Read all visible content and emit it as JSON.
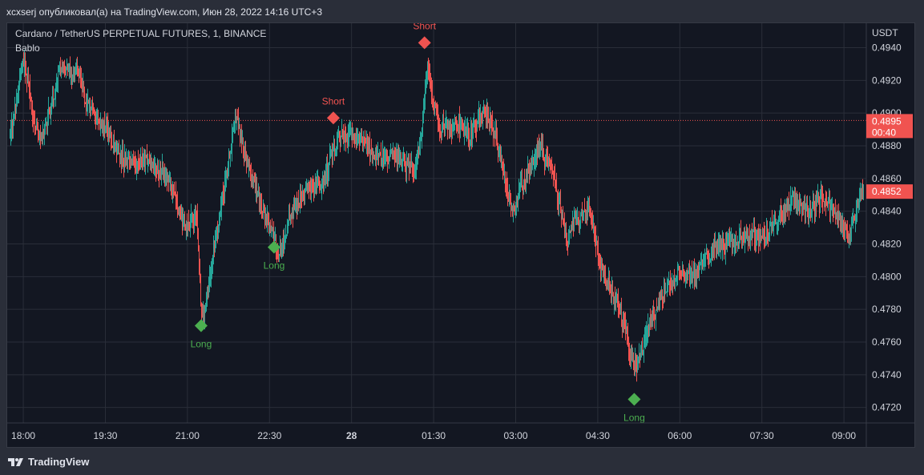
{
  "header": {
    "publisher_line": "xcxserj опубликовал(а) на TradingView.com, Июн 28, 2022 14:16 UTC+3"
  },
  "legend": {
    "symbol": "Cardano / TetherUS PERPETUAL FUTURES, 1, BINANCE",
    "indicator": "Bablo"
  },
  "footer": {
    "logo_text": "TradingView",
    "logo_icon": "tradingview-logo-icon"
  },
  "colors": {
    "background": "#131722",
    "grid": "#2a2e39",
    "up": "#26a69a",
    "down": "#ef5350",
    "long_signal": "#4caf50",
    "short_signal": "#f05350",
    "price_label": "#f05350"
  },
  "chart_data": {
    "type": "candlestick",
    "title": "Cardano / TetherUS PERPETUAL FUTURES, 1, BINANCE",
    "indicator": "Bablo",
    "y_axis_label": "USDT",
    "ylim": [
      0.4712,
      0.4952
    ],
    "y_ticks": [
      "0.4940",
      "0.4920",
      "0.4900",
      "0.4880",
      "0.4860",
      "0.4840",
      "0.4820",
      "0.4800",
      "0.4780",
      "0.4760",
      "0.4740",
      "0.4720"
    ],
    "x_ticks": [
      "18:00",
      "19:30",
      "21:00",
      "22:30",
      "28",
      "01:30",
      "03:00",
      "04:30",
      "06:00",
      "07:30",
      "09:00"
    ],
    "x_tick_bold": "28",
    "x_range": [
      "17:45",
      "09:21"
    ],
    "grid": true,
    "price_path": [
      {
        "time": "17:45",
        "price": 0.4885
      },
      {
        "time": "18:00",
        "price": 0.4935
      },
      {
        "time": "18:10",
        "price": 0.4897
      },
      {
        "time": "18:20",
        "price": 0.4885
      },
      {
        "time": "18:40",
        "price": 0.4928
      },
      {
        "time": "19:00",
        "price": 0.4922
      },
      {
        "time": "19:10",
        "price": 0.4905
      },
      {
        "time": "19:30",
        "price": 0.489
      },
      {
        "time": "19:50",
        "price": 0.4872
      },
      {
        "time": "20:15",
        "price": 0.487
      },
      {
        "time": "20:40",
        "price": 0.486
      },
      {
        "time": "20:55",
        "price": 0.483
      },
      {
        "time": "21:10",
        "price": 0.4838
      },
      {
        "time": "21:15",
        "price": 0.4768
      },
      {
        "time": "21:25",
        "price": 0.4805
      },
      {
        "time": "21:45",
        "price": 0.487
      },
      {
        "time": "21:52",
        "price": 0.49
      },
      {
        "time": "22:05",
        "price": 0.487
      },
      {
        "time": "22:20",
        "price": 0.4845
      },
      {
        "time": "22:40",
        "price": 0.4812
      },
      {
        "time": "22:50",
        "price": 0.4835
      },
      {
        "time": "23:10",
        "price": 0.4855
      },
      {
        "time": "23:30",
        "price": 0.486
      },
      {
        "time": "23:45",
        "price": 0.4887
      },
      {
        "time": "00:10",
        "price": 0.4885
      },
      {
        "time": "00:25",
        "price": 0.4872
      },
      {
        "time": "00:45",
        "price": 0.4873
      },
      {
        "time": "01:00",
        "price": 0.4868
      },
      {
        "time": "01:10",
        "price": 0.4865
      },
      {
        "time": "01:18",
        "price": 0.4902
      },
      {
        "time": "01:22",
        "price": 0.4928
      },
      {
        "time": "01:35",
        "price": 0.489
      },
      {
        "time": "01:55",
        "price": 0.4893
      },
      {
        "time": "02:10",
        "price": 0.4887
      },
      {
        "time": "02:25",
        "price": 0.4902
      },
      {
        "time": "02:38",
        "price": 0.4885
      },
      {
        "time": "02:55",
        "price": 0.484
      },
      {
        "time": "03:10",
        "price": 0.4862
      },
      {
        "time": "03:25",
        "price": 0.4878
      },
      {
        "time": "03:40",
        "price": 0.4865
      },
      {
        "time": "03:55",
        "price": 0.482
      },
      {
        "time": "04:05",
        "price": 0.4835
      },
      {
        "time": "04:20",
        "price": 0.484
      },
      {
        "time": "04:35",
        "price": 0.48
      },
      {
        "time": "04:50",
        "price": 0.4785
      },
      {
        "time": "05:05",
        "price": 0.4755
      },
      {
        "time": "05:12",
        "price": 0.4745
      },
      {
        "time": "05:25",
        "price": 0.477
      },
      {
        "time": "05:40",
        "price": 0.4788
      },
      {
        "time": "06:00",
        "price": 0.4805
      },
      {
        "time": "06:15",
        "price": 0.48
      },
      {
        "time": "06:35",
        "price": 0.4815
      },
      {
        "time": "06:55",
        "price": 0.4822
      },
      {
        "time": "07:15",
        "price": 0.4825
      },
      {
        "time": "07:35",
        "price": 0.4825
      },
      {
        "time": "07:50",
        "price": 0.484
      },
      {
        "time": "08:05",
        "price": 0.4848
      },
      {
        "time": "08:20",
        "price": 0.4838
      },
      {
        "time": "08:35",
        "price": 0.4848
      },
      {
        "time": "08:55",
        "price": 0.4835
      },
      {
        "time": "09:05",
        "price": 0.4823
      },
      {
        "time": "09:21",
        "price": 0.4856
      }
    ],
    "signals": [
      {
        "type": "Long",
        "time": "21:15",
        "price": 0.477,
        "label": "Long"
      },
      {
        "type": "Long",
        "time": "22:35",
        "price": 0.4818,
        "label": "Long"
      },
      {
        "type": "Short",
        "time": "23:40",
        "price": 0.4897,
        "label": "Short"
      },
      {
        "type": "Short",
        "time": "01:20",
        "price": 0.4943,
        "label": "Short"
      },
      {
        "type": "Long",
        "time": "05:10",
        "price": 0.4725,
        "label": "Long"
      }
    ],
    "reference_line": {
      "price": 0.48955,
      "style": "dotted"
    },
    "price_labels": [
      {
        "value": "0.4895",
        "countdown": "00:40"
      },
      {
        "value": "0.4852"
      }
    ]
  }
}
